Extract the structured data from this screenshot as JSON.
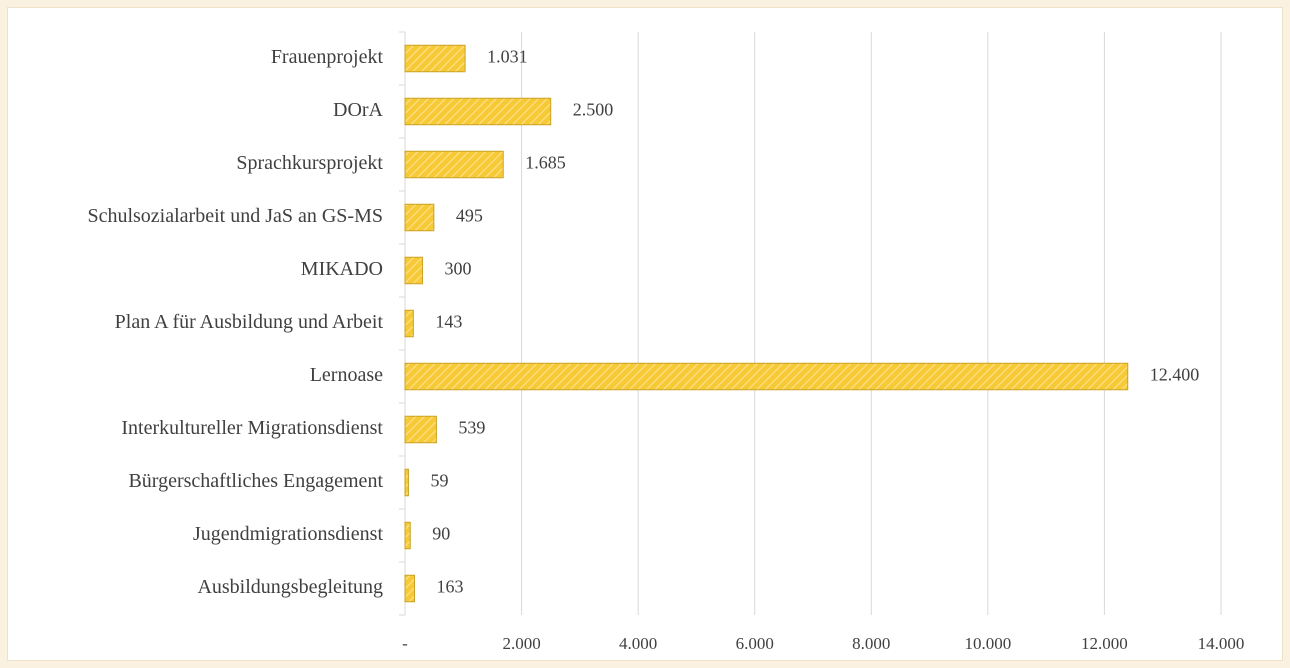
{
  "chart_data": {
    "type": "hbar",
    "categories": [
      "Frauenprojekt",
      "DOrA",
      "Sprachkursprojekt",
      "Schulsozialarbeit und JaS an GS-MS",
      "MIKADO",
      "Plan A für Ausbildung und Arbeit",
      "Lernoase",
      "Interkultureller Migrationsdienst",
      "Bürgerschaftliches Engagement",
      "Jugendmigrationsdienst",
      "Ausbildungsbegleitung"
    ],
    "values": [
      1031,
      2500,
      1685,
      495,
      300,
      143,
      12400,
      539,
      59,
      90,
      163
    ],
    "value_labels": [
      "1.031",
      "2.500",
      "1.685",
      "495",
      "300",
      "143",
      "12.400",
      "539",
      "59",
      "90",
      "163"
    ],
    "color": "#f7c934",
    "xlim": [
      0,
      14000
    ],
    "xticks": [
      {
        "value": 0,
        "label": "-"
      },
      {
        "value": 2000,
        "label": "2.000"
      },
      {
        "value": 4000,
        "label": "4.000"
      },
      {
        "value": 6000,
        "label": "6.000"
      },
      {
        "value": 8000,
        "label": "8.000"
      },
      {
        "value": 10000,
        "label": "10.000"
      },
      {
        "value": 12000,
        "label": "12.000"
      },
      {
        "value": 14000,
        "label": "14.000"
      }
    ],
    "grid": true
  }
}
